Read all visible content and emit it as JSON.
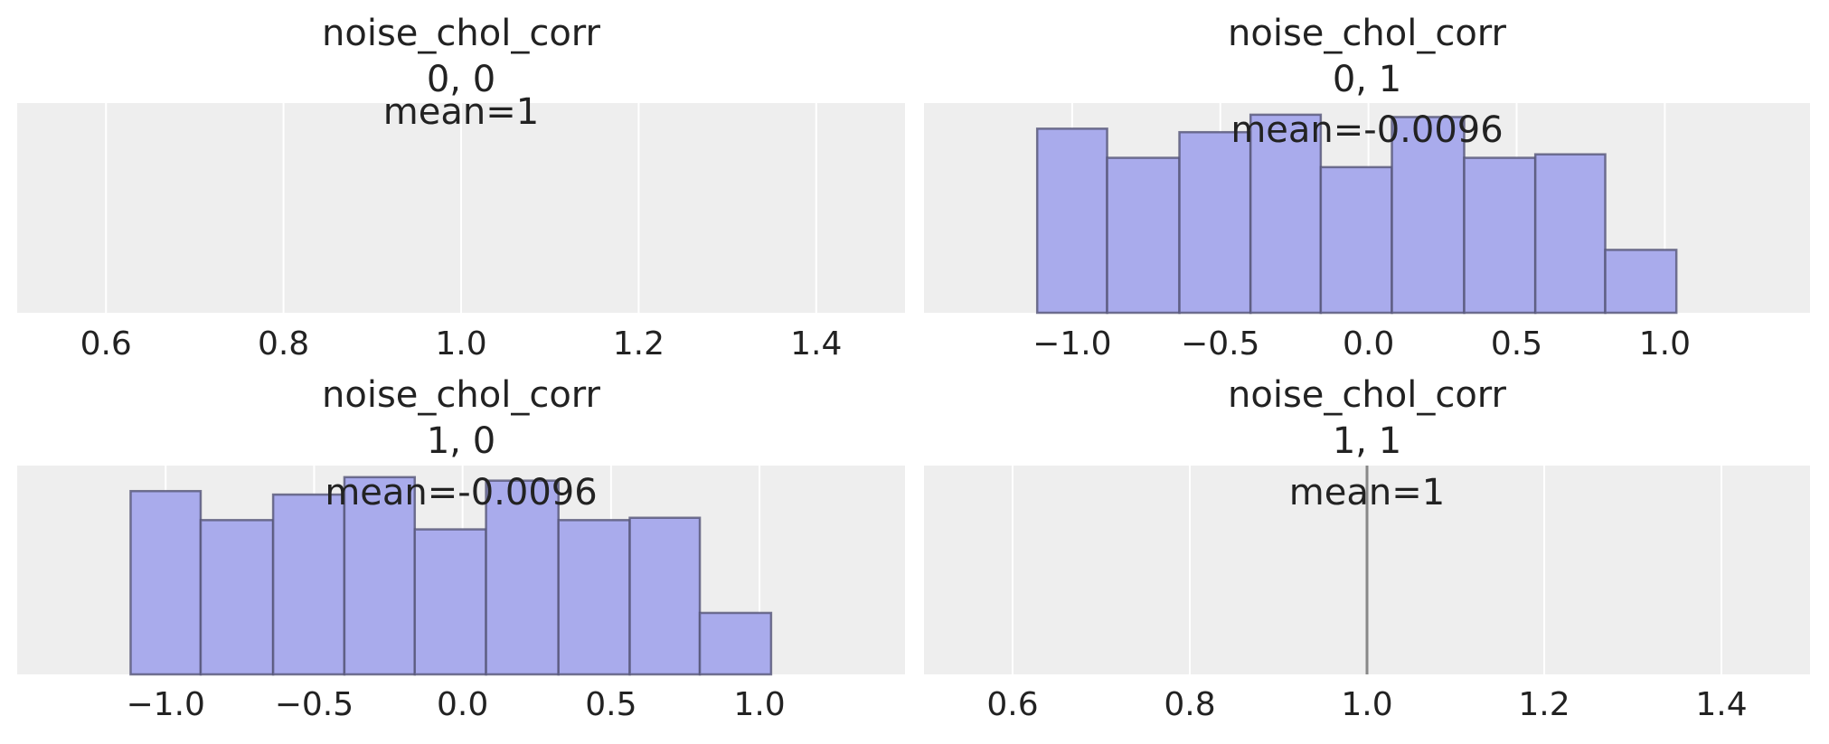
{
  "chart_data": [
    {
      "type": "histogram",
      "title": "noise_chol_corr",
      "subtitle": "0, 0",
      "annotation": "mean=1",
      "xlim": [
        0.5,
        1.5
      ],
      "xticks": [
        0.6,
        0.8,
        {
          "value": 1.0,
          "label": "1.0"
        },
        1.2,
        1.4
      ],
      "ylim": [
        0,
        180
      ],
      "grid": true,
      "color": "#a9abec"
    },
    {
      "type": "histogram",
      "title": "noise_chol_corr",
      "subtitle": "0, 1",
      "annotation": "mean=-0.0096",
      "xlim": [
        -1.5,
        1.49
      ],
      "xticks": [
        {
          "value": -1.0,
          "label": "−1.0"
        },
        {
          "value": -0.5,
          "label": "−0.5"
        },
        {
          "value": 0.0,
          "label": "0.0"
        },
        0.5,
        {
          "value": 1.0,
          "label": "1.0"
        }
      ],
      "ylim": [
        0,
        180
      ],
      "grid": true,
      "color": "#a9abec",
      "bins": [
        -1.118,
        -0.882,
        -0.638,
        -0.398,
        -0.161,
        0.079,
        0.323,
        0.563,
        0.799,
        1.039
      ],
      "values": [
        158,
        133,
        155,
        170,
        125,
        168,
        133,
        136,
        54
      ]
    },
    {
      "type": "histogram",
      "title": "noise_chol_corr",
      "subtitle": "1, 0",
      "annotation": "mean=-0.0096",
      "xlim": [
        -1.5,
        1.49
      ],
      "xticks": [
        {
          "value": -1.0,
          "label": "−1.0"
        },
        {
          "value": -0.5,
          "label": "−0.5"
        },
        {
          "value": 0.0,
          "label": "0.0"
        },
        0.5,
        {
          "value": 1.0,
          "label": "1.0"
        }
      ],
      "ylim": [
        0,
        180
      ],
      "grid": true,
      "color": "#a9abec",
      "bins": [
        -1.118,
        -0.882,
        -0.638,
        -0.398,
        -0.161,
        0.079,
        0.323,
        0.563,
        0.799,
        1.039
      ],
      "values": [
        158,
        133,
        155,
        170,
        125,
        167,
        133,
        135,
        53
      ]
    },
    {
      "type": "histogram",
      "title": "noise_chol_corr",
      "subtitle": "1, 1",
      "annotation": "mean=1",
      "xlim": [
        0.5,
        1.5
      ],
      "xticks": [
        0.6,
        0.8,
        {
          "value": 1.0,
          "label": "1.0"
        },
        1.2,
        1.4
      ],
      "ylim": [
        0,
        180
      ],
      "grid": true,
      "color": "#a9abec",
      "bins": [
        1.0,
        1.0
      ],
      "values": [
        180
      ]
    }
  ]
}
